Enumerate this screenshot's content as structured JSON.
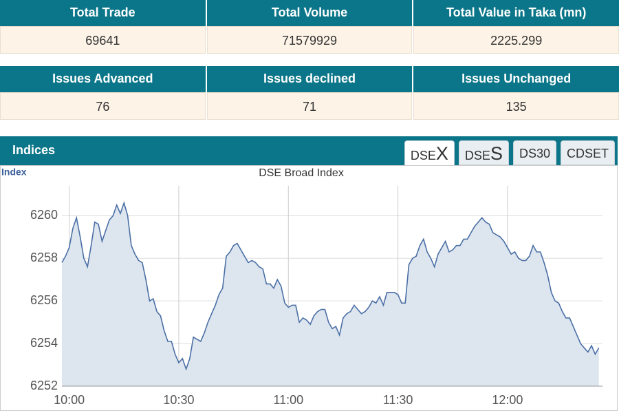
{
  "stats": [
    {
      "headers": [
        "Total Trade",
        "Total Volume",
        "Total Value in Taka (mn)"
      ],
      "values": [
        "69641",
        "71579929",
        "2225.299"
      ]
    },
    {
      "headers": [
        "Issues Advanced",
        "Issues declined",
        "Issues Unchanged"
      ],
      "values": [
        "76",
        "71",
        "135"
      ]
    }
  ],
  "indices": {
    "title": "Indices",
    "tabs": [
      [
        "DSE",
        "X"
      ],
      [
        "DSE",
        "S"
      ],
      [
        "DS30"
      ],
      [
        "CDSET"
      ]
    ]
  },
  "chart_data": {
    "type": "line",
    "title": "DSE Broad Index",
    "y_label": "Index",
    "color": "#4a6fa5",
    "fill": "#dde5ef",
    "grid": true,
    "xlim": [
      "09:58",
      "12:26"
    ],
    "xticks": [
      "10:00",
      "10:30",
      "11:00",
      "11:30",
      "12:00"
    ],
    "ylim": [
      6252,
      6261.4
    ],
    "yticks": [
      6252,
      6254,
      6256,
      6258,
      6260
    ],
    "x": [
      "09:58",
      "09:59",
      "10:00",
      "10:01",
      "10:02",
      "10:03",
      "10:04",
      "10:05",
      "10:06",
      "10:07",
      "10:08",
      "10:09",
      "10:10",
      "10:11",
      "10:12",
      "10:13",
      "10:14",
      "10:15",
      "10:16",
      "10:17",
      "10:18",
      "10:19",
      "10:20",
      "10:21",
      "10:22",
      "10:23",
      "10:24",
      "10:25",
      "10:26",
      "10:27",
      "10:28",
      "10:29",
      "10:30",
      "10:31",
      "10:32",
      "10:33",
      "10:34",
      "10:35",
      "10:36",
      "10:37",
      "10:38",
      "10:39",
      "10:40",
      "10:41",
      "10:42",
      "10:43",
      "10:44",
      "10:45",
      "10:46",
      "10:47",
      "10:48",
      "10:49",
      "10:50",
      "10:51",
      "10:52",
      "10:53",
      "10:54",
      "10:55",
      "10:56",
      "10:57",
      "10:58",
      "10:59",
      "11:00",
      "11:01",
      "11:02",
      "11:03",
      "11:04",
      "11:05",
      "11:06",
      "11:07",
      "11:08",
      "11:09",
      "11:10",
      "11:11",
      "11:12",
      "11:13",
      "11:14",
      "11:15",
      "11:16",
      "11:17",
      "11:18",
      "11:19",
      "11:20",
      "11:21",
      "11:22",
      "11:23",
      "11:24",
      "11:25",
      "11:26",
      "11:27",
      "11:28",
      "11:29",
      "11:30",
      "11:31",
      "11:32",
      "11:33",
      "11:34",
      "11:35",
      "11:36",
      "11:37",
      "11:38",
      "11:39",
      "11:40",
      "11:41",
      "11:42",
      "11:43",
      "11:44",
      "11:45",
      "11:46",
      "11:47",
      "11:48",
      "11:49",
      "11:50",
      "11:51",
      "11:52",
      "11:53",
      "11:54",
      "11:55",
      "11:56",
      "11:57",
      "11:58",
      "11:59",
      "12:00",
      "12:01",
      "12:02",
      "12:03",
      "12:04",
      "12:05",
      "12:06",
      "12:07",
      "12:08",
      "12:09",
      "12:10",
      "12:11",
      "12:12",
      "12:13",
      "12:14",
      "12:15",
      "12:16",
      "12:17",
      "12:18",
      "12:19",
      "12:20",
      "12:21",
      "12:22",
      "12:23",
      "12:24",
      "12:25"
    ],
    "values": [
      6257.8,
      6258.1,
      6258.5,
      6259.4,
      6259.9,
      6259.0,
      6258.0,
      6257.6,
      6258.6,
      6259.7,
      6259.6,
      6258.8,
      6259.3,
      6259.8,
      6260.0,
      6260.5,
      6260.1,
      6260.6,
      6260.0,
      6258.6,
      6258.2,
      6257.9,
      6257.8,
      6257.0,
      6256.0,
      6256.1,
      6255.5,
      6255.3,
      6254.6,
      6254.1,
      6254.1,
      6253.5,
      6253.1,
      6253.3,
      6252.8,
      6253.3,
      6254.3,
      6254.2,
      6254.1,
      6254.5,
      6255.0,
      6255.4,
      6255.8,
      6256.3,
      6256.6,
      6258.1,
      6258.3,
      6258.6,
      6258.7,
      6258.4,
      6258.1,
      6257.8,
      6257.9,
      6257.8,
      6257.6,
      6257.5,
      6256.8,
      6256.8,
      6256.6,
      6257.0,
      6256.7,
      6255.9,
      6255.7,
      6255.8,
      6255.8,
      6255.0,
      6255.2,
      6255.1,
      6254.9,
      6255.3,
      6255.5,
      6255.6,
      6255.6,
      6255.0,
      6254.7,
      6254.8,
      6254.4,
      6255.2,
      6255.4,
      6255.5,
      6255.8,
      6255.6,
      6255.4,
      6255.5,
      6255.7,
      6256.0,
      6255.9,
      6256.2,
      6255.8,
      6256.4,
      6256.4,
      6256.4,
      6256.3,
      6255.9,
      6255.9,
      6257.7,
      6258.0,
      6258.1,
      6258.6,
      6258.9,
      6258.3,
      6258.0,
      6257.6,
      6258.2,
      6258.5,
      6258.8,
      6258.3,
      6258.4,
      6258.6,
      6258.6,
      6258.9,
      6258.9,
      6259.2,
      6259.5,
      6259.7,
      6259.9,
      6259.7,
      6259.6,
      6259.2,
      6259.1,
      6259.0,
      6258.8,
      6258.5,
      6258.2,
      6258.3,
      6258.0,
      6257.9,
      6257.9,
      6258.1,
      6258.6,
      6258.3,
      6258.3,
      6257.8,
      6257.2,
      6256.4,
      6256.0,
      6255.9,
      6255.5,
      6255.2,
      6255.2,
      6254.8,
      6254.4,
      6254.0,
      6253.8,
      6253.6,
      6253.9,
      6253.5,
      6253.8
    ]
  }
}
